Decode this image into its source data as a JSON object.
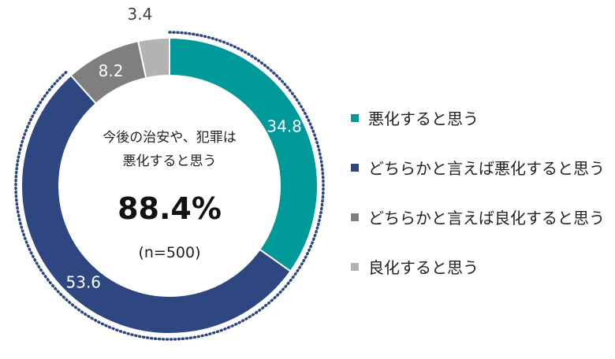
{
  "chart_data": {
    "type": "pie",
    "donut": true,
    "center": {
      "title_line1": "今後の治安や、犯罪は",
      "title_line2": "悪化すると思う",
      "value": "88.4%",
      "note": "(n=500)"
    },
    "slices": [
      {
        "label": "悪化すると思う",
        "value": 34.8,
        "value_label": "34.8",
        "color": "#009999",
        "label_color": "#ffffff"
      },
      {
        "label": "どちらかと言えば悪化すると思う",
        "value": 53.6,
        "value_label": "53.6",
        "color": "#2e4780",
        "label_color": "#ffffff"
      },
      {
        "label": "どちらかと言えば良化すると思う",
        "value": 8.2,
        "value_label": "8.2",
        "color": "#7f7f7f",
        "label_color": "#ffffff"
      },
      {
        "label": "良化すると思う",
        "value": 3.4,
        "value_label": "3.4",
        "color": "#b3b3b3",
        "label_color": "#404040"
      }
    ],
    "highlight_dotted_outline": [
      "悪化すると思う",
      "どちらかと言えば悪化すると思う"
    ],
    "legend_placement": "right"
  }
}
